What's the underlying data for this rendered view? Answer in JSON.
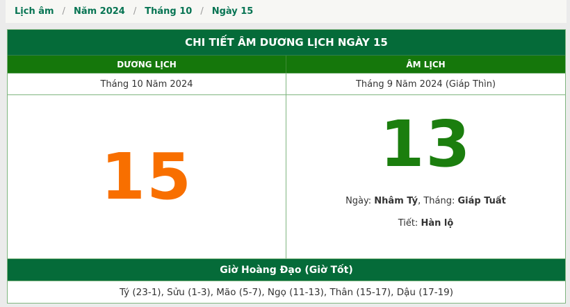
{
  "colors": {
    "header_green_dark": "#056B39",
    "column_header_green": "#15770B",
    "solar_number_orange": "#F86F00",
    "lunar_number_green": "#1B7E0E",
    "breadcrumb_link_green": "#077453",
    "border_light_green": "#7FB57F",
    "page_background": "#EBEBEB"
  },
  "breadcrumb": {
    "separator": "/",
    "items": [
      {
        "label": "Lịch âm"
      },
      {
        "label": "Năm 2024"
      },
      {
        "label": "Tháng 10"
      },
      {
        "label": "Ngày 15"
      }
    ]
  },
  "table": {
    "title": "CHI TIẾT ÂM DƯƠNG LỊCH NGÀY 15",
    "columns": {
      "solar_header": "DƯƠNG LỊCH",
      "lunar_header": "ÂM LỊCH"
    },
    "subheaders": {
      "solar": "Tháng 10 Năm 2024",
      "lunar": "Tháng 9 Năm 2024 (Giáp Thìn)"
    },
    "solar": {
      "day_number": "15"
    },
    "lunar": {
      "day_number": "13",
      "day_label": "Ngày: ",
      "day_canchi": "Nhâm Tý",
      "separator": ", ",
      "month_label": "Tháng: ",
      "month_canchi": "Giáp Tuất",
      "tiet_label": "Tiết: ",
      "tiet_value": "Hàn lộ"
    },
    "hoang_dao": {
      "title": "Giờ Hoàng Đạo (Giờ Tốt)",
      "hours": "Tý (23-1), Sửu (1-3), Mão (5-7), Ngọ (11-13), Thân (15-17), Dậu (17-19)"
    }
  }
}
